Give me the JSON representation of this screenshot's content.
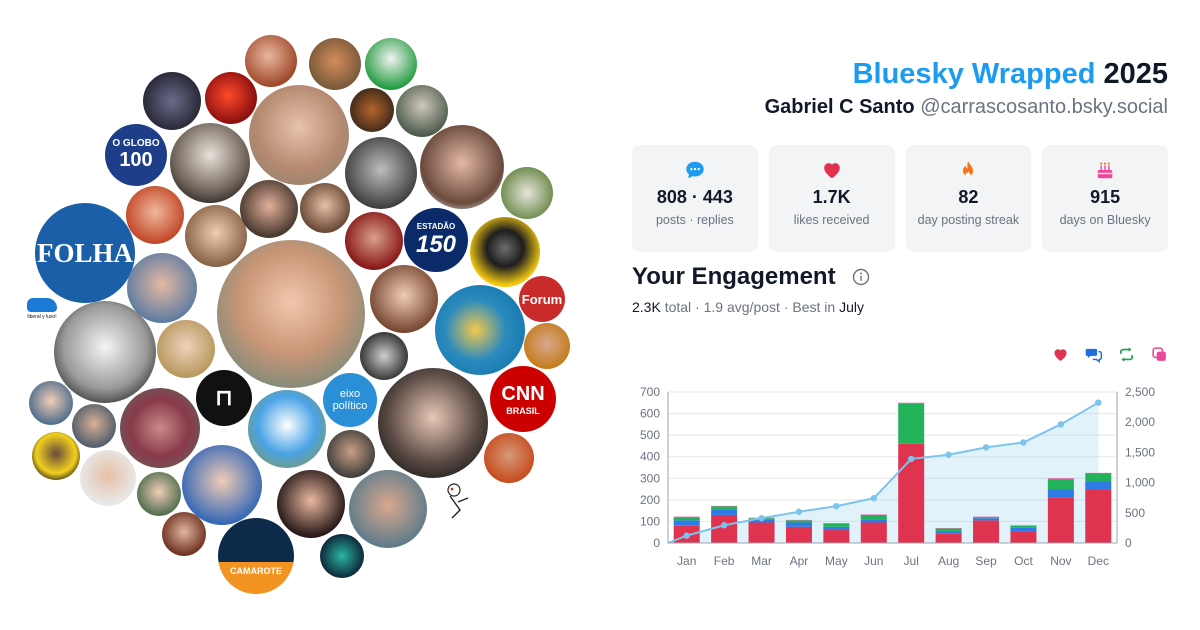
{
  "header": {
    "title_accent": "Bluesky Wrapped",
    "title_year": "2025",
    "name": "Gabriel C Santo",
    "handle": "@carrascosanto.bsky.social"
  },
  "stats": [
    {
      "icon": "speech-bubble-icon",
      "value": "808 · 443",
      "label": "posts · replies",
      "color": "#1d9bf0"
    },
    {
      "icon": "heart-icon",
      "value": "1.7K",
      "label": "likes received",
      "color": "#e0334f"
    },
    {
      "icon": "flame-icon",
      "value": "82",
      "label": "day posting streak",
      "color": "#f97316"
    },
    {
      "icon": "cake-icon",
      "value": "915",
      "label": "days on Bluesky",
      "color": "#ec4899"
    }
  ],
  "engagement": {
    "title": "Your Engagement",
    "total": "2.3K",
    "total_word": "total",
    "avg": "1.9 avg/post",
    "best_prefix": "Best in",
    "best_month": "July"
  },
  "legend_icons": [
    {
      "name": "heart-icon",
      "color": "#e0334f"
    },
    {
      "name": "reply-icon",
      "color": "#1d6fe0"
    },
    {
      "name": "repost-icon",
      "color": "#16a34a"
    },
    {
      "name": "quote-icon",
      "color": "#ec4899"
    }
  ],
  "bubbles": {
    "folha": "FOLHA",
    "globo_top": "O GLOBO",
    "globo_num": "100",
    "estadao_top": "ESTADÃO",
    "estadao_num": "150",
    "forum": "Forum",
    "cnn_top": "CNN",
    "cnn_bottom": "BRASIL",
    "eixo": "eixo político",
    "camarote": "CAMAROTE",
    "liberal": "liberal y luxo!"
  },
  "chart_data": {
    "type": "bar",
    "stacked": true,
    "categories": [
      "Jan",
      "Feb",
      "Mar",
      "Apr",
      "May",
      "Jun",
      "Jul",
      "Aug",
      "Sep",
      "Oct",
      "Nov",
      "Dec"
    ],
    "series": [
      {
        "key": "likes",
        "color": "#e0334f",
        "values": [
          80,
          130,
          95,
          75,
          60,
          95,
          460,
          45,
          105,
          55,
          210,
          250
        ]
      },
      {
        "key": "replies",
        "color": "#2f7ae5",
        "values": [
          25,
          25,
          15,
          20,
          15,
          15,
          0,
          10,
          10,
          15,
          40,
          35
        ]
      },
      {
        "key": "reposts",
        "color": "#22b35a",
        "values": [
          15,
          15,
          5,
          10,
          15,
          20,
          185,
          12,
          5,
          10,
          45,
          35
        ]
      },
      {
        "key": "quotes",
        "color": "#ec4899",
        "values": [
          2,
          2,
          2,
          2,
          2,
          2,
          5,
          2,
          2,
          2,
          5,
          5
        ]
      }
    ],
    "cumulative": {
      "color": "#7cc4ee",
      "values": [
        122,
        294,
        411,
        518,
        610,
        742,
        1392,
        1461,
        1583,
        1665,
        1965,
        2325
      ]
    },
    "y_left": {
      "min": 0,
      "max": 700,
      "ticks": [
        "0",
        "100",
        "200",
        "300",
        "400",
        "500",
        "600",
        "700"
      ]
    },
    "y_right": {
      "min": 0,
      "max": 2500,
      "ticks": [
        "0",
        "500",
        "1,000",
        "1,500",
        "2,000",
        "2,500"
      ]
    },
    "grid": true
  }
}
